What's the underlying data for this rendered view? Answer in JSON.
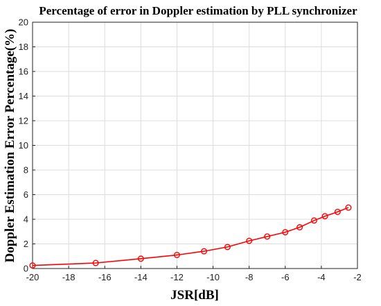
{
  "chart_data": {
    "type": "line",
    "title": "Percentage of error in Doppler estimation by PLL synchronizer",
    "xlabel": "JSR[dB]",
    "ylabel": "Doppler Estimation Error Percentage(%)",
    "xlim": [
      -20,
      -2
    ],
    "ylim": [
      0,
      20
    ],
    "xticks": [
      -20,
      -18,
      -16,
      -14,
      -12,
      -10,
      -8,
      -6,
      -4,
      -2
    ],
    "yticks": [
      0,
      2,
      4,
      6,
      8,
      10,
      12,
      14,
      16,
      18,
      20
    ],
    "grid": true,
    "series": [
      {
        "color": "#ff0000",
        "marker": "circle",
        "x": [
          -20,
          -16.5,
          -14,
          -12,
          -10.5,
          -9.2,
          -8,
          -7,
          -6,
          -5.2,
          -4.4,
          -3.8,
          -3.1,
          -2.5
        ],
        "y": [
          0.25,
          0.45,
          0.8,
          1.1,
          1.4,
          1.75,
          2.25,
          2.6,
          2.95,
          3.35,
          3.9,
          4.25,
          4.6,
          4.95
        ]
      }
    ]
  }
}
